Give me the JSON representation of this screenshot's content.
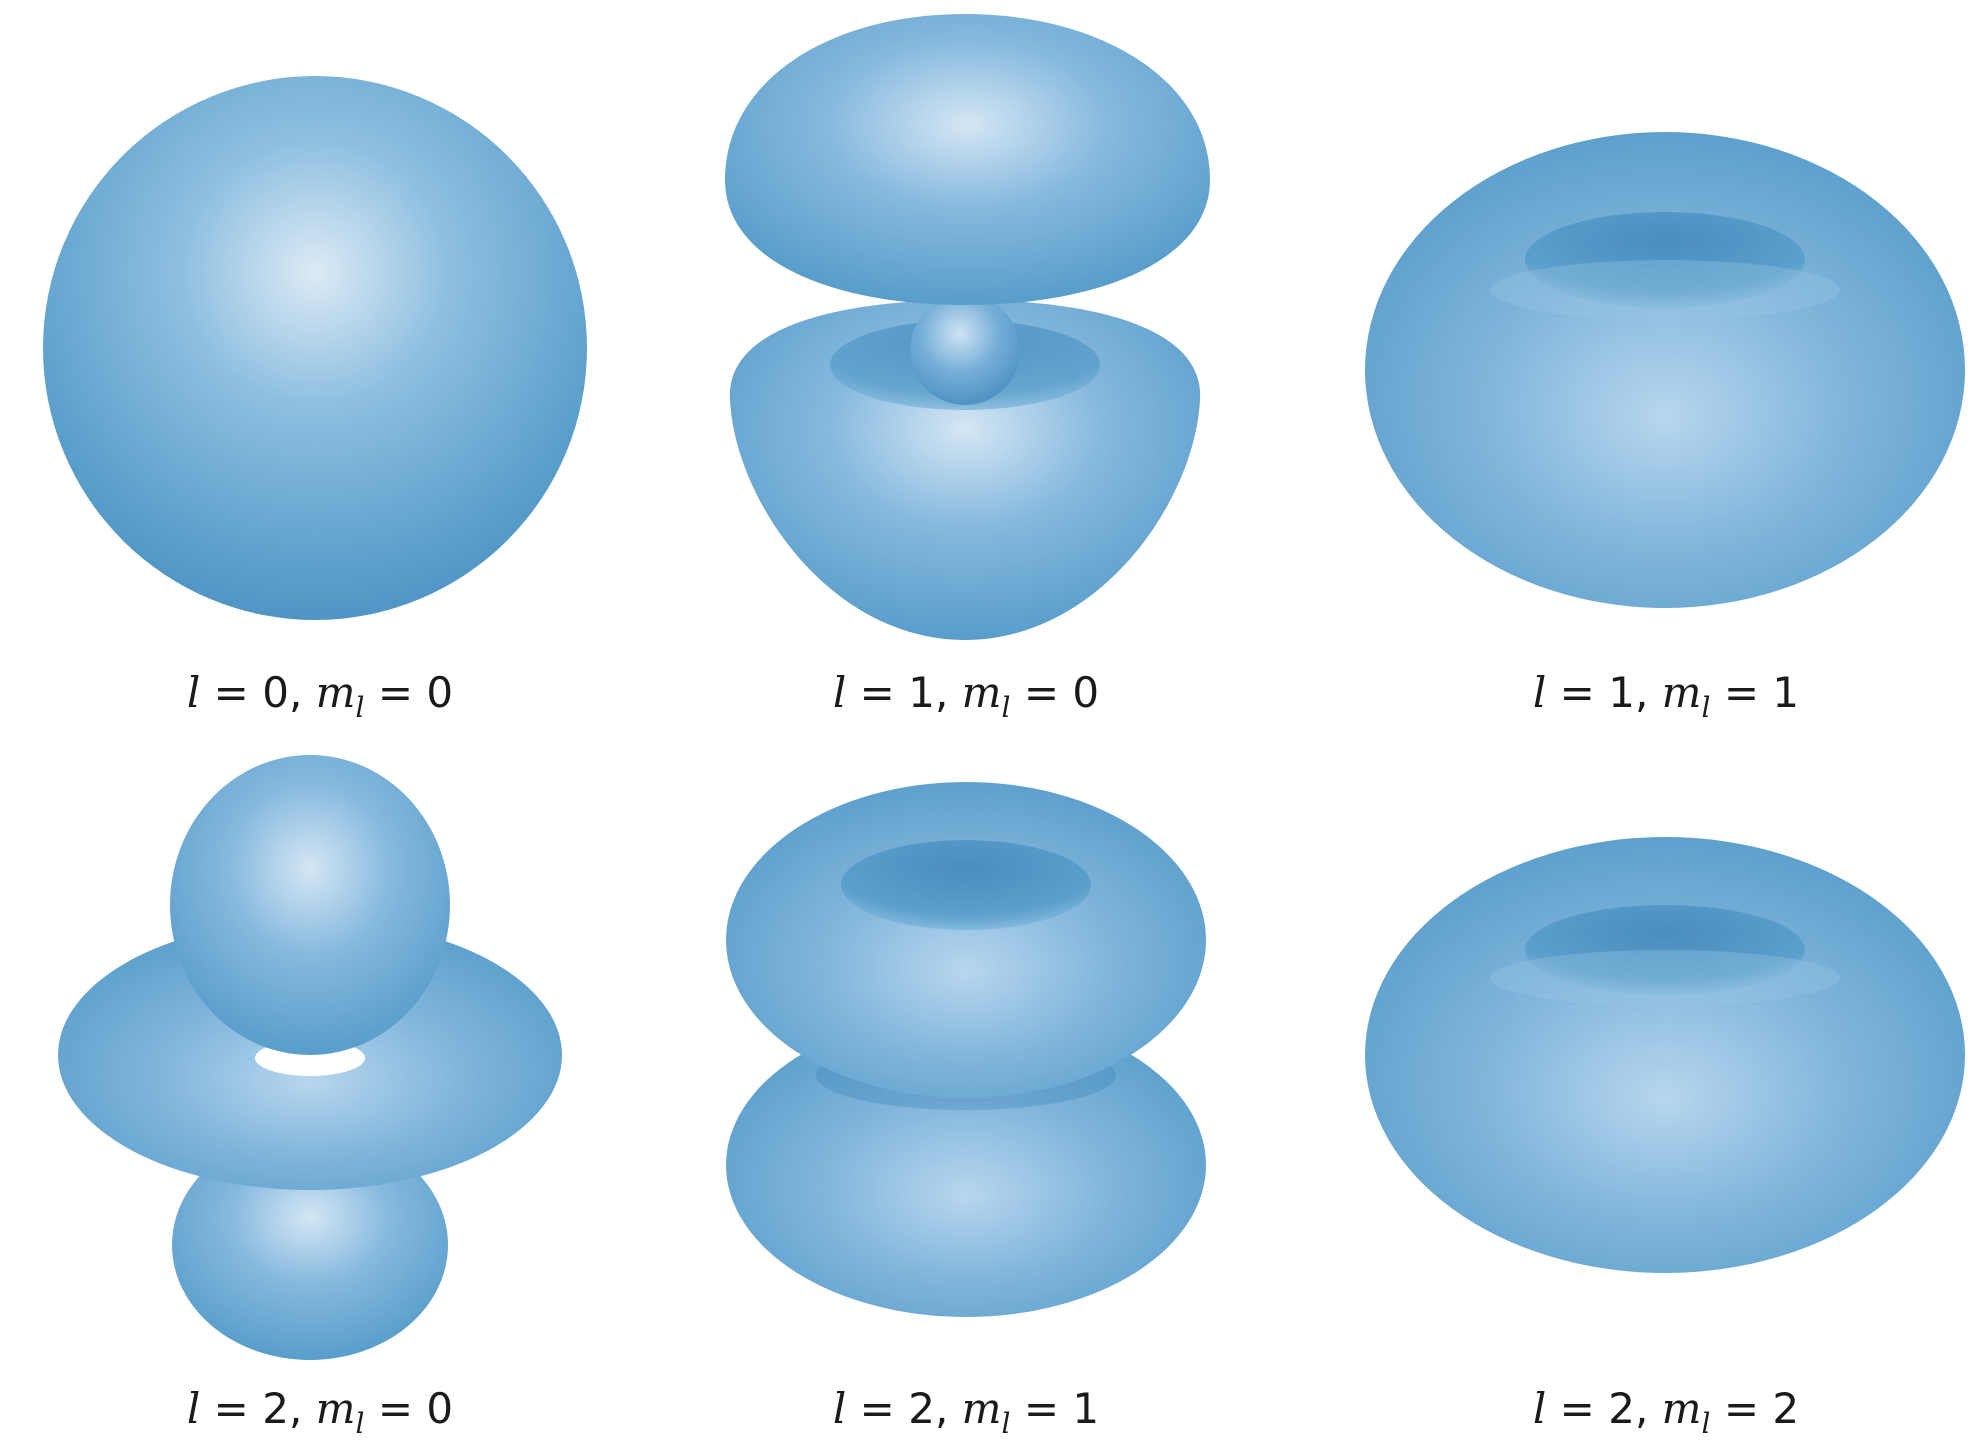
{
  "colors": {
    "base": "#5a9ecb",
    "highlight": "#dceaf5",
    "shadow": "#3f85b8"
  },
  "orbitals": [
    {
      "l": "0",
      "ml": "0",
      "shape": "sphere"
    },
    {
      "l": "1",
      "ml": "0",
      "shape": "p-z lobes with inner bead"
    },
    {
      "l": "1",
      "ml": "1",
      "shape": "torus"
    },
    {
      "l": "2",
      "ml": "0",
      "shape": "d-z2 lobes with ring"
    },
    {
      "l": "2",
      "ml": "1",
      "shape": "double torus"
    },
    {
      "l": "2",
      "ml": "2",
      "shape": "torus"
    }
  ],
  "labels": {
    "l_symbol": "l",
    "ml_symbol": "m",
    "ml_subscript": "l",
    "equals": "=",
    "comma": ","
  }
}
